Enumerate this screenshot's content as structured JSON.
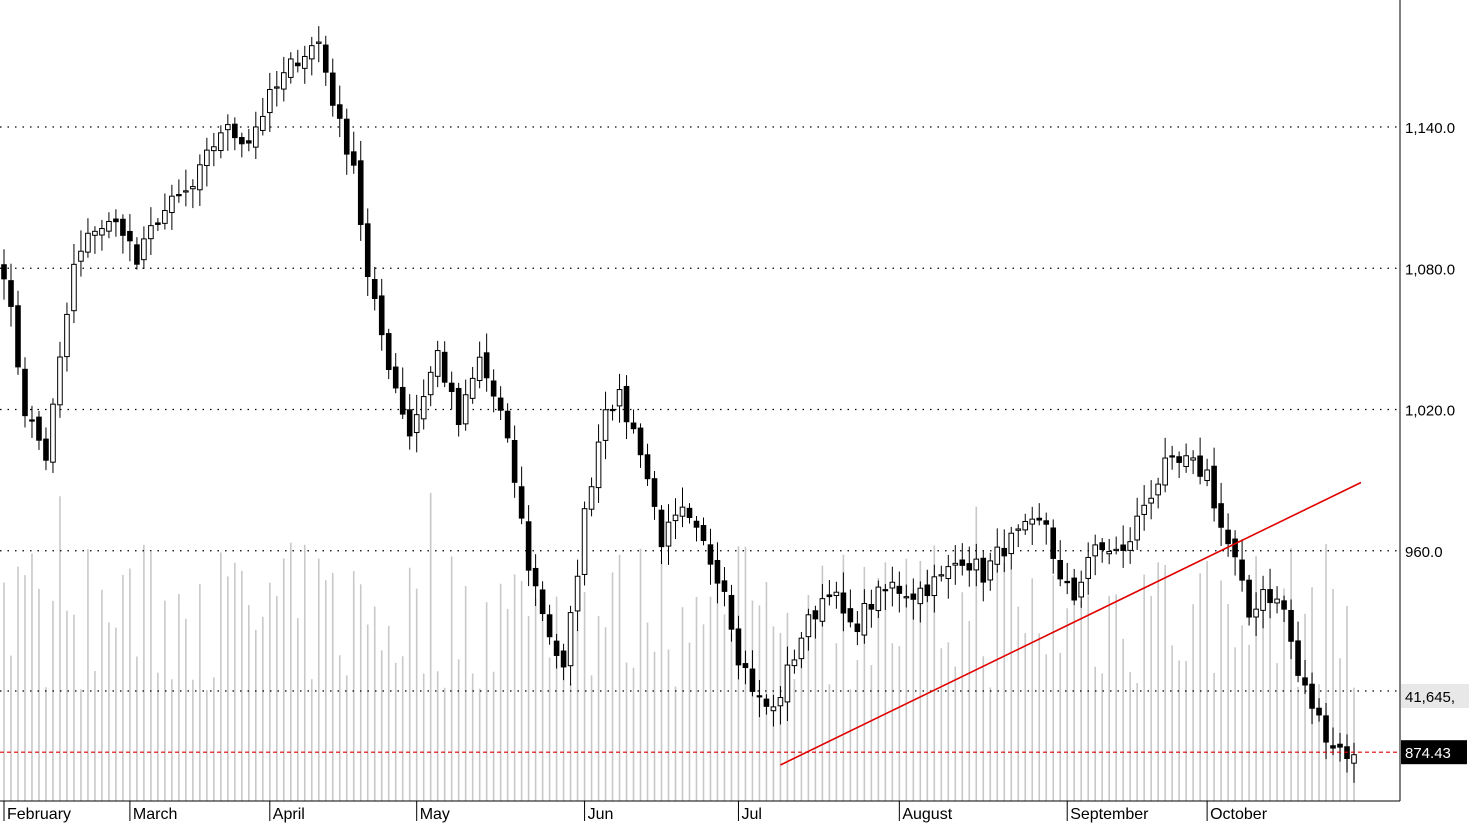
{
  "chart_data": {
    "type": "candlestick",
    "title": "",
    "xlabel": "",
    "ylabel": "",
    "ylim": [
      859,
      1184
    ],
    "y_ticks": [
      {
        "value": 1140,
        "label": "1,140.0"
      },
      {
        "value": 1080,
        "label": "1,080.0"
      },
      {
        "value": 1020,
        "label": "1,020.0"
      },
      {
        "value": 960,
        "label": "960.0"
      }
    ],
    "volume_axis_label": "41,645,",
    "last_price": {
      "value": 874.43,
      "label": "874.43"
    },
    "months": [
      {
        "label": "February",
        "index": 0
      },
      {
        "label": "March",
        "index": 18
      },
      {
        "label": "April",
        "index": 38
      },
      {
        "label": "May",
        "index": 59
      },
      {
        "label": "Jun",
        "index": 83
      },
      {
        "label": "Jul",
        "index": 105
      },
      {
        "label": "August",
        "index": 128
      },
      {
        "label": "September",
        "index": 152
      },
      {
        "label": "October",
        "index": 172
      }
    ],
    "trendline": {
      "from": {
        "index": 111,
        "value": 869
      },
      "to": {
        "index": 194,
        "value": 989
      }
    },
    "colors": {
      "up": "#ffffff",
      "down": "#000000",
      "trendline": "#e00000",
      "price_line": "#e00000",
      "volume": "#c8c8c8"
    },
    "series": [
      {
        "name": "",
        "anchors": [
          [
            0,
            1080
          ],
          [
            3,
            1020
          ],
          [
            6,
            1000
          ],
          [
            10,
            1080
          ],
          [
            13,
            1098
          ],
          [
            17,
            1098
          ],
          [
            19,
            1082
          ],
          [
            22,
            1102
          ],
          [
            27,
            1114
          ],
          [
            31,
            1139
          ],
          [
            35,
            1135
          ],
          [
            38,
            1152
          ],
          [
            42,
            1170
          ],
          [
            45,
            1176
          ],
          [
            48,
            1140
          ],
          [
            50,
            1125
          ],
          [
            52,
            1075
          ],
          [
            55,
            1040
          ],
          [
            58,
            1010
          ],
          [
            62,
            1044
          ],
          [
            65,
            1014
          ],
          [
            68,
            1041
          ],
          [
            71,
            1018
          ],
          [
            73,
            990
          ],
          [
            75,
            954
          ],
          [
            78,
            925
          ],
          [
            80,
            908
          ],
          [
            83,
            975
          ],
          [
            86,
            1023
          ],
          [
            88,
            1024
          ],
          [
            91,
            1004
          ],
          [
            94,
            965
          ],
          [
            97,
            975
          ],
          [
            100,
            962
          ],
          [
            103,
            945
          ],
          [
            105,
            916
          ],
          [
            108,
            896
          ],
          [
            110,
            892
          ],
          [
            112,
            908
          ],
          [
            114,
            924
          ],
          [
            118,
            945
          ],
          [
            121,
            926
          ],
          [
            124,
            938
          ],
          [
            127,
            945
          ],
          [
            130,
            942
          ],
          [
            134,
            948
          ],
          [
            137,
            958
          ],
          [
            140,
            950
          ],
          [
            143,
            962
          ],
          [
            146,
            968
          ],
          [
            149,
            972
          ],
          [
            151,
            946
          ],
          [
            153,
            940
          ],
          [
            155,
            958
          ],
          [
            158,
            961
          ],
          [
            160,
            958
          ],
          [
            163,
            980
          ],
          [
            166,
            995
          ],
          [
            169,
            997
          ],
          [
            172,
            993
          ],
          [
            174,
            970
          ],
          [
            176,
            955
          ],
          [
            178,
            932
          ],
          [
            180,
            944
          ],
          [
            183,
            935
          ],
          [
            185,
            907
          ],
          [
            188,
            888
          ],
          [
            190,
            878
          ],
          [
            192,
            874.43
          ]
        ]
      }
    ]
  }
}
